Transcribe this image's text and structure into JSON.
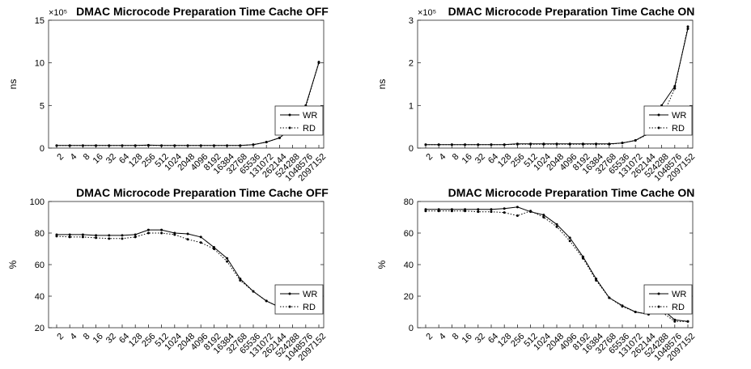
{
  "chart_data": [
    {
      "type": "line",
      "title": "DMAC Microcode Preparation Time Cache OFF",
      "xlabel": "",
      "ylabel": "ns",
      "exponent_label": "×10⁵",
      "ylim": [
        0,
        15
      ],
      "yticks": [
        0,
        5,
        10,
        15
      ],
      "yscale": 100000,
      "legend_position": "bottom-right",
      "grid": false,
      "categories": [
        "2",
        "4",
        "8",
        "16",
        "32",
        "64",
        "128",
        "256",
        "512",
        "1024",
        "2048",
        "4096",
        "8192",
        "16384",
        "32768",
        "65536",
        "131072",
        "262144",
        "524288",
        "1048576",
        "2097152"
      ],
      "series": [
        {
          "name": "WR",
          "style": "solid",
          "values": [
            0.3,
            0.3,
            0.3,
            0.3,
            0.3,
            0.3,
            0.3,
            0.35,
            0.3,
            0.3,
            0.3,
            0.3,
            0.3,
            0.3,
            0.3,
            0.4,
            0.7,
            1.2,
            2.5,
            5.0,
            10.0
          ]
        },
        {
          "name": "RD",
          "style": "dotted",
          "values": [
            0.3,
            0.3,
            0.3,
            0.3,
            0.3,
            0.3,
            0.3,
            0.3,
            0.3,
            0.3,
            0.3,
            0.3,
            0.3,
            0.3,
            0.3,
            0.4,
            0.7,
            1.2,
            2.4,
            4.8,
            10.1
          ]
        }
      ]
    },
    {
      "type": "line",
      "title": "DMAC Microcode Preparation Time Cache ON",
      "xlabel": "",
      "ylabel": "ns",
      "exponent_label": "×10⁵",
      "ylim": [
        0,
        3
      ],
      "yticks": [
        0,
        1,
        2,
        3
      ],
      "yscale": 100000,
      "legend_position": "bottom-right",
      "grid": false,
      "categories": [
        "2",
        "4",
        "8",
        "16",
        "32",
        "64",
        "128",
        "256",
        "512",
        "1024",
        "2048",
        "4096",
        "8192",
        "16384",
        "32768",
        "65536",
        "131072",
        "262144",
        "524288",
        "1048576",
        "2097152"
      ],
      "series": [
        {
          "name": "WR",
          "style": "solid",
          "values": [
            0.08,
            0.08,
            0.08,
            0.08,
            0.08,
            0.08,
            0.08,
            0.1,
            0.1,
            0.1,
            0.1,
            0.1,
            0.1,
            0.1,
            0.1,
            0.12,
            0.18,
            0.35,
            1.0,
            1.45,
            2.8
          ]
        },
        {
          "name": "RD",
          "style": "dotted",
          "values": [
            0.08,
            0.08,
            0.08,
            0.08,
            0.08,
            0.08,
            0.08,
            0.09,
            0.09,
            0.09,
            0.09,
            0.09,
            0.09,
            0.09,
            0.09,
            0.12,
            0.18,
            0.33,
            0.7,
            1.4,
            2.85
          ]
        }
      ]
    },
    {
      "type": "line",
      "title": "DMAC Microcode Preparation Time Cache OFF",
      "xlabel": "",
      "ylabel": "%",
      "exponent_label": "",
      "ylim": [
        20,
        100
      ],
      "yticks": [
        20,
        40,
        60,
        80,
        100
      ],
      "yscale": 1,
      "legend_position": "bottom-right",
      "grid": false,
      "categories": [
        "2",
        "4",
        "8",
        "16",
        "32",
        "64",
        "128",
        "256",
        "512",
        "1024",
        "2048",
        "4096",
        "8192",
        "16384",
        "32768",
        "65536",
        "131072",
        "262144",
        "524288",
        "1048576",
        "2097152"
      ],
      "series": [
        {
          "name": "WR",
          "style": "solid",
          "values": [
            79,
            79,
            79,
            78.5,
            78.5,
            78.5,
            79,
            82,
            82,
            80,
            79.5,
            77.5,
            71,
            64,
            51,
            43,
            37,
            33,
            33,
            33,
            null
          ]
        },
        {
          "name": "RD",
          "style": "dotted",
          "values": [
            78,
            77.5,
            77.5,
            77,
            76.5,
            76.5,
            77.5,
            80,
            80,
            79,
            76,
            74,
            70,
            62,
            50,
            43,
            37,
            33,
            33,
            33,
            null
          ]
        }
      ]
    },
    {
      "type": "line",
      "title": "DMAC Microcode Preparation Time Cache ON",
      "xlabel": "",
      "ylabel": "%",
      "exponent_label": "",
      "ylim": [
        0,
        80
      ],
      "yticks": [
        0,
        20,
        40,
        60,
        80
      ],
      "yscale": 1,
      "legend_position": "bottom-right",
      "grid": false,
      "categories": [
        "2",
        "4",
        "8",
        "16",
        "32",
        "64",
        "128",
        "256",
        "512",
        "1024",
        "2048",
        "4096",
        "8192",
        "16384",
        "32768",
        "65536",
        "131072",
        "262144",
        "524288",
        "1048576",
        "2097152"
      ],
      "series": [
        {
          "name": "WR",
          "style": "solid",
          "values": [
            75,
            75,
            75,
            75,
            75,
            75,
            75.5,
            76.5,
            73.5,
            71.5,
            65.5,
            57,
            45,
            31,
            19,
            14,
            10,
            8.5,
            12,
            5,
            4
          ]
        },
        {
          "name": "RD",
          "style": "dotted",
          "values": [
            74,
            74,
            74,
            74,
            73.5,
            73.5,
            73,
            71,
            74,
            70,
            64,
            55,
            44,
            30,
            19,
            13.5,
            10,
            8.5,
            10,
            4,
            4
          ]
        }
      ]
    }
  ]
}
